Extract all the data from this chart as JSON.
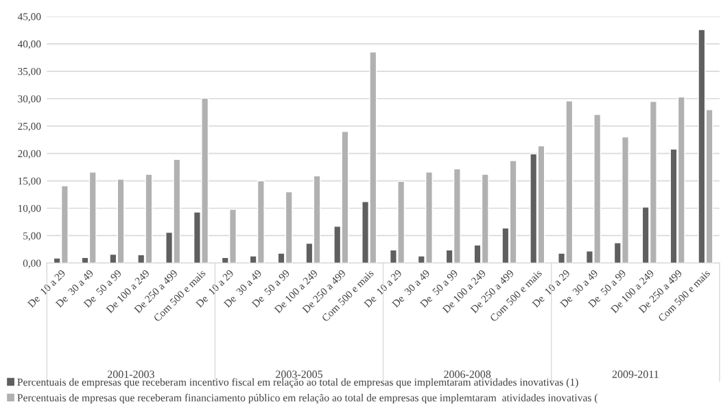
{
  "chart_data": {
    "type": "bar",
    "categories": [
      "De  10 a 29",
      "De  30 a 49",
      "De  50 a 99",
      "De 100 a 249",
      "De 250 a 499",
      "Com 500 e mais",
      "De  10 a 29",
      "De  30 a 49",
      "De  50 a 99",
      "De 100 a 249",
      "De 250 a 499",
      "Com 500 e mais",
      "De  10 a 29",
      "De  30 a 49",
      "De  50 a 99",
      "De 100 a 249",
      "De 250 a 499",
      "Com 500 e mais",
      "De  10 a 29",
      "De  30 a 49",
      "De  50 a 99",
      "De 100 a 249",
      "De 250 a 499",
      "Com 500 e mais"
    ],
    "series": [
      {
        "name": "Percentuais de empresas que receberam incentivo fiscal em relação ao total de empresas que implemtaram atividades inovativas (1)",
        "color": "#5f5f5f",
        "values": [
          0.9,
          1.0,
          1.6,
          1.5,
          5.6,
          9.3,
          1.0,
          1.3,
          1.8,
          3.6,
          6.7,
          11.2,
          2.4,
          1.3,
          2.4,
          3.3,
          6.4,
          19.9,
          1.8,
          2.2,
          3.7,
          10.2,
          20.8,
          42.6
        ]
      },
      {
        "name": "Percentuais de mpresas que receberam financiamento público em relação ao total de empresas que implemtaram  atividades inovativas (",
        "color": "#b1b1b1",
        "values": [
          14.1,
          16.6,
          15.3,
          16.2,
          18.9,
          30.1,
          9.8,
          15.0,
          13.0,
          15.9,
          24.0,
          38.5,
          14.9,
          16.6,
          17.2,
          16.2,
          18.7,
          21.4,
          29.6,
          27.1,
          23.0,
          29.5,
          30.3,
          28.0
        ]
      }
    ],
    "annotations": [
      "2001-2003",
      "2003-2005",
      "2006-2008",
      "2009-2011"
    ],
    "ylim": [
      0,
      45
    ],
    "yticks": [
      {
        "value": 0,
        "label": "0,00"
      },
      {
        "value": 5,
        "label": "5,00"
      },
      {
        "value": 10,
        "label": "10,00"
      },
      {
        "value": 15,
        "label": "15,00"
      },
      {
        "value": 20,
        "label": "20,00"
      },
      {
        "value": 25,
        "label": "25,00"
      },
      {
        "value": 30,
        "label": "30,00"
      },
      {
        "value": 35,
        "label": "35,00"
      },
      {
        "value": 40,
        "label": "40,00"
      },
      {
        "value": 45,
        "label": "45,00"
      }
    ],
    "grid": "y",
    "legend": "bottom"
  }
}
